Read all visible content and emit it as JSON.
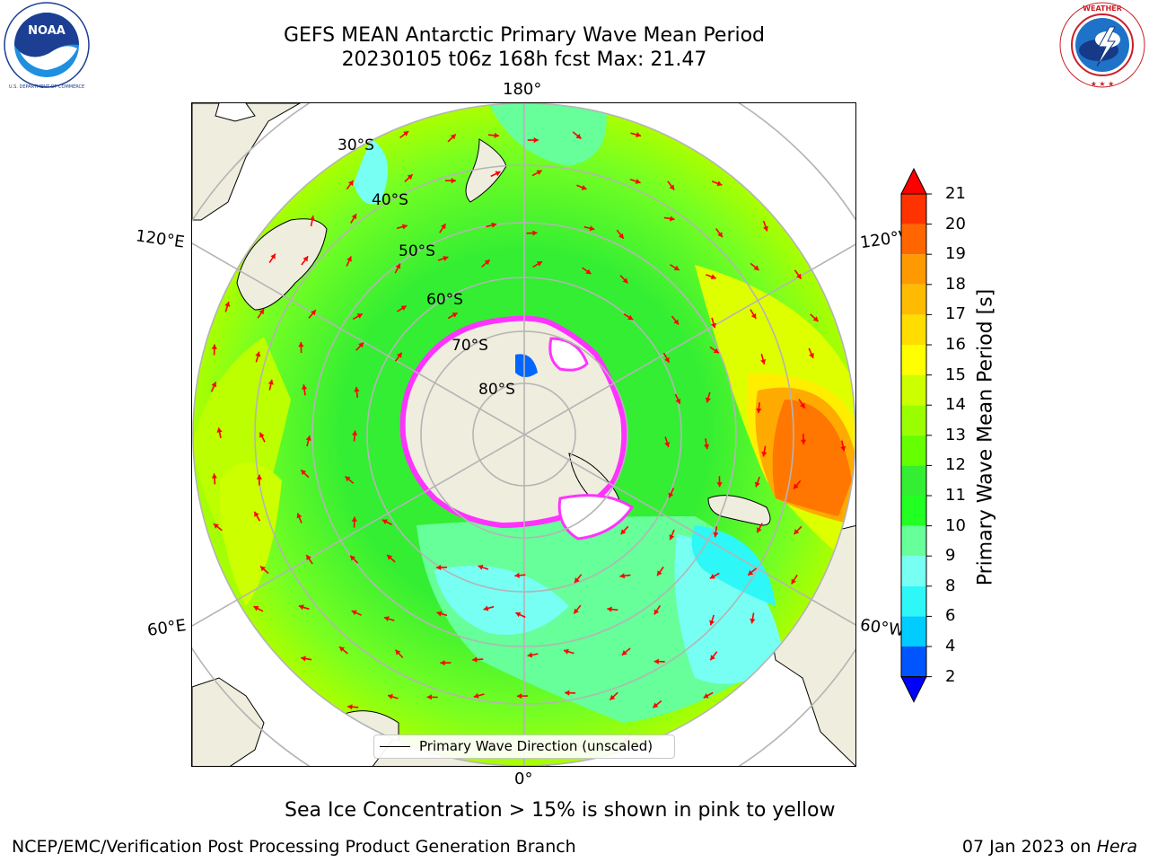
{
  "header": {
    "title_line1": "GEFS MEAN Antarctic Primary Wave Mean Period",
    "title_line2": "20230105 t06z 168h fcst   Max: 21.47"
  },
  "logos": {
    "left": {
      "name": "noaa-logo",
      "text": "NOAA",
      "ring_text": "NATIONAL OCEANIC AND ATMOSPHERIC ADMINISTRATION · U.S. DEPARTMENT OF COMMERCE"
    },
    "right": {
      "name": "nws-logo",
      "ring_text": "NATIONAL WEATHER SERVICE"
    }
  },
  "map": {
    "projection": "south-polar-stereographic",
    "longitude_labels": [
      "180°",
      "0°",
      "120°E",
      "120°W",
      "60°E",
      "60°W"
    ],
    "latitude_labels": [
      "30°S",
      "40°S",
      "50°S",
      "60°S",
      "70°S",
      "80°S"
    ],
    "legend_label": "Primary Wave Direction (unscaled)",
    "arrow_color": "#ff0000",
    "land_color": "#efedde",
    "ice_colors": [
      "#ff33ff",
      "#ffcc99",
      "#ffffff"
    ]
  },
  "colorbar": {
    "label": "Primary Wave Mean Period [s]",
    "ticks": [
      "2",
      "4",
      "6",
      "8",
      "9",
      "10",
      "11",
      "12",
      "13",
      "14",
      "15",
      "16",
      "17",
      "18",
      "19",
      "20",
      "21"
    ],
    "colors": [
      "#0055ff",
      "#00ccff",
      "#2ef7f7",
      "#77fff3",
      "#66ff99",
      "#22ff22",
      "#33ee33",
      "#66ff00",
      "#99ff00",
      "#ccff00",
      "#ffff00",
      "#ffdd00",
      "#ffbb00",
      "#ff9900",
      "#ff6600",
      "#ff3300",
      "#ff0000"
    ],
    "under_color": "#0000ff",
    "over_color": "#ff0000"
  },
  "caption": "Sea Ice Concentration > 15% is shown in pink to yellow",
  "footer": {
    "left": "NCEP/EMC/Verification Post Processing Product Generation Branch",
    "right_date": "07 Jan 2023 on ",
    "right_machine": "Hera"
  }
}
